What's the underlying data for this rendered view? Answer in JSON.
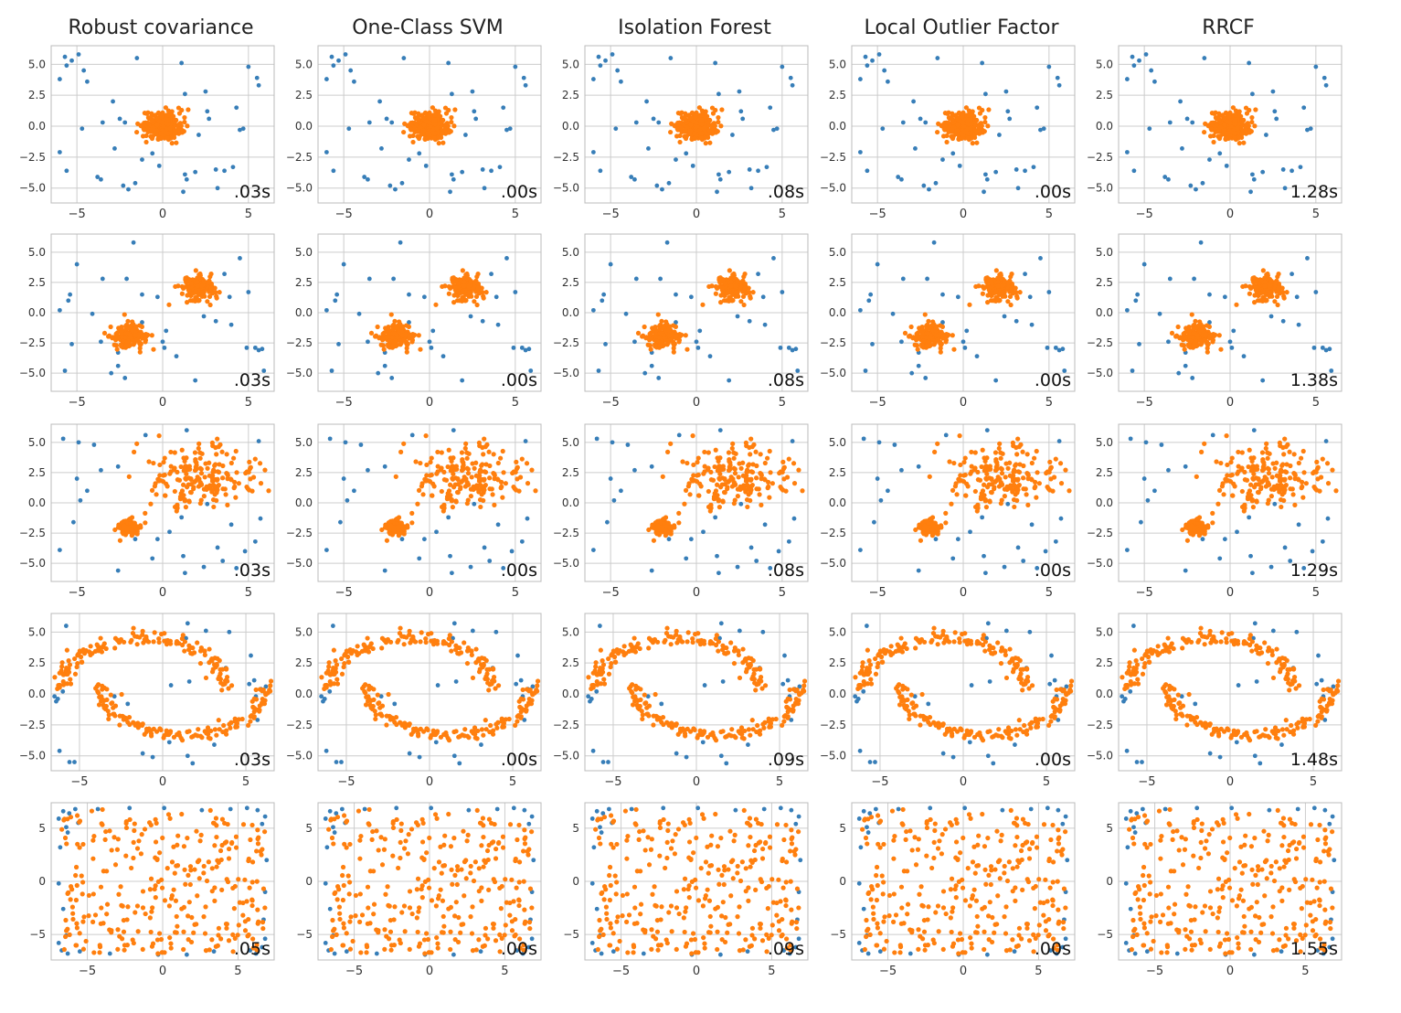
{
  "figure": {
    "titles": [
      "Robust covariance",
      "One-Class SVM",
      "Isolation Forest",
      "Local Outlier Factor",
      "RRCF"
    ]
  },
  "colors": {
    "inlier": "#ff7f0e",
    "outlier": "#377eb8",
    "grid": "#cccccc",
    "frame": "#bbbbbb"
  },
  "chart_data": [
    {
      "type": "scatter",
      "dataset": "single-blob",
      "xlim": [
        -6.5,
        6.5
      ],
      "ylim": [
        -6.2,
        6.5
      ],
      "xticks": [
        -5,
        0,
        5
      ],
      "xticklabels": [
        "−5",
        "0",
        "5"
      ],
      "yticks": [
        5.0,
        2.5,
        0.0,
        -2.5,
        -5.0
      ],
      "yticklabels": [
        "5.0",
        "2.5",
        "0.0",
        "−2.5",
        "−5.0"
      ],
      "times": [
        ".03s",
        ".00s",
        ".08s",
        ".00s",
        "1.28s"
      ],
      "clusters": [
        {
          "cx": 0,
          "cy": 0,
          "sx": 0.55,
          "sy": 0.55,
          "n": 300
        }
      ],
      "outliers": [
        [
          -5.7,
          5.6
        ],
        [
          -5.3,
          5.3
        ],
        [
          -4.9,
          5.8
        ],
        [
          -5.6,
          4.9
        ],
        [
          -4.6,
          4.5
        ],
        [
          -6,
          3.8
        ],
        [
          -4.4,
          3.6
        ],
        [
          -1.5,
          5.5
        ],
        [
          1.1,
          5.1
        ],
        [
          5,
          4.8
        ],
        [
          5.5,
          3.9
        ],
        [
          5.6,
          3.3
        ],
        [
          -2.9,
          2
        ],
        [
          1.3,
          2.6
        ],
        [
          2.5,
          2.8
        ],
        [
          2.6,
          1.2
        ],
        [
          2.7,
          0.6
        ],
        [
          4.3,
          1.5
        ],
        [
          -4.7,
          -0.2
        ],
        [
          -3.5,
          0.3
        ],
        [
          -2.5,
          0.6
        ],
        [
          -2.2,
          0.3
        ],
        [
          -2.8,
          -1.8
        ],
        [
          -1.2,
          -2.7
        ],
        [
          -0.6,
          -2.2
        ],
        [
          -0.2,
          -3.2
        ],
        [
          -3.8,
          -4.1
        ],
        [
          -3.6,
          -4.3
        ],
        [
          -2.3,
          -4.8
        ],
        [
          -2,
          -5.1
        ],
        [
          -1.6,
          -4.6
        ],
        [
          1.3,
          -3.9
        ],
        [
          1.4,
          -4.3
        ],
        [
          1.2,
          -5.3
        ],
        [
          3.1,
          -3.5
        ],
        [
          3.6,
          -3.6
        ],
        [
          4.1,
          -3.3
        ],
        [
          3.2,
          -5
        ],
        [
          -5.6,
          -3.6
        ],
        [
          -6,
          -2.1
        ],
        [
          4.7,
          -0.2
        ],
        [
          4.5,
          -0.3
        ],
        [
          2.1,
          -0.7
        ],
        [
          1.9,
          -3.7
        ]
      ]
    },
    {
      "type": "scatter",
      "dataset": "two-blobs",
      "xlim": [
        -6.5,
        6.5
      ],
      "ylim": [
        -6.5,
        6.5
      ],
      "xticks": [
        -5,
        0,
        5
      ],
      "xticklabels": [
        "−5",
        "0",
        "5"
      ],
      "yticks": [
        5.0,
        2.5,
        0.0,
        -2.5,
        -5.0
      ],
      "yticklabels": [
        "5.0",
        "2.5",
        "0.0",
        "−2.5",
        "−5.0"
      ],
      "times": [
        ".03s",
        ".00s",
        ".08s",
        ".00s",
        "1.38s"
      ],
      "clusters": [
        {
          "cx": 2,
          "cy": 2,
          "sx": 0.5,
          "sy": 0.5,
          "n": 150
        },
        {
          "cx": -2,
          "cy": -2,
          "sx": 0.5,
          "sy": 0.5,
          "n": 150
        }
      ],
      "outliers": [
        [
          -5,
          4
        ],
        [
          -1.7,
          5.8
        ],
        [
          -5.4,
          1.5
        ],
        [
          -5.5,
          1
        ],
        [
          -6,
          0.2
        ],
        [
          -5.3,
          -2.6
        ],
        [
          -5.7,
          -4.8
        ],
        [
          -3.6,
          -2.4
        ],
        [
          -2.6,
          -4.4
        ],
        [
          -3,
          -5
        ],
        [
          -2.2,
          -5.4
        ],
        [
          -2.6,
          -3.3
        ],
        [
          -1.2,
          -0.8
        ],
        [
          -1.2,
          1.5
        ],
        [
          -2.1,
          2.8
        ],
        [
          -0.3,
          1.3
        ],
        [
          0,
          -2.4
        ],
        [
          0.1,
          -2.9
        ],
        [
          0.8,
          -3.6
        ],
        [
          1.9,
          -5.6
        ],
        [
          3.1,
          -0.7
        ],
        [
          3.6,
          3.2
        ],
        [
          4.5,
          4.5
        ],
        [
          5,
          1.7
        ],
        [
          5.4,
          -2.9
        ],
        [
          5.6,
          -3.1
        ],
        [
          5.8,
          -3
        ],
        [
          5.9,
          -4.8
        ],
        [
          4.9,
          -2.9
        ],
        [
          3.9,
          1.3
        ],
        [
          4,
          -1
        ],
        [
          2.4,
          -0.3
        ],
        [
          0.2,
          -1.5
        ],
        [
          -4.1,
          -0.1
        ],
        [
          -3.5,
          2.8
        ]
      ]
    },
    {
      "type": "scatter",
      "dataset": "blob-and-spread",
      "xlim": [
        -6.5,
        6.5
      ],
      "ylim": [
        -6.5,
        6.5
      ],
      "xticks": [
        -5,
        0,
        5
      ],
      "xticklabels": [
        "−5",
        "0",
        "5"
      ],
      "yticks": [
        5.0,
        2.5,
        0.0,
        -2.5,
        -5.0
      ],
      "yticklabels": [
        "5.0",
        "2.5",
        "0.0",
        "−2.5",
        "−5.0"
      ],
      "times": [
        ".03s",
        ".00s",
        ".08s",
        ".00s",
        "1.29s"
      ],
      "clusters": [
        {
          "cx": -2,
          "cy": -2,
          "sx": 0.32,
          "sy": 0.32,
          "n": 100
        },
        {
          "cx": 2.2,
          "cy": 2.2,
          "sx": 1.5,
          "sy": 1.2,
          "n": 200
        }
      ],
      "outliers": [
        [
          -5.8,
          5.3
        ],
        [
          -4.9,
          5
        ],
        [
          -4,
          4.8
        ],
        [
          -1,
          5.6
        ],
        [
          1.4,
          6
        ],
        [
          -5,
          2
        ],
        [
          -3.6,
          2.7
        ],
        [
          -2.6,
          3
        ],
        [
          -4.4,
          1
        ],
        [
          -4.8,
          0.2
        ],
        [
          -5.2,
          -1.6
        ],
        [
          -6,
          -3.9
        ],
        [
          -2.6,
          -5.6
        ],
        [
          -1.6,
          -3
        ],
        [
          -0.3,
          -3
        ],
        [
          -0.6,
          -4.6
        ],
        [
          1.2,
          -4.4
        ],
        [
          1.3,
          -5.8
        ],
        [
          2.4,
          -5.3
        ],
        [
          3.2,
          -3.7
        ],
        [
          3.5,
          -4.8
        ],
        [
          4.3,
          -5.4
        ],
        [
          4.8,
          -4
        ],
        [
          5.4,
          -3.2
        ],
        [
          5.7,
          -1.3
        ],
        [
          4,
          -1.8
        ],
        [
          2.6,
          -0.1
        ],
        [
          1.1,
          -1.2
        ],
        [
          0.4,
          -2.4
        ],
        [
          5.6,
          5.1
        ]
      ]
    },
    {
      "type": "scatter",
      "dataset": "two-moons",
      "xlim": [
        -6.7,
        6.7
      ],
      "ylim": [
        -6.2,
        6.5
      ],
      "xticks": [
        -5,
        0,
        5
      ],
      "xticklabels": [
        "−5",
        "0",
        "5"
      ],
      "yticks": [
        5.0,
        2.5,
        0.0,
        -2.5,
        -5.0
      ],
      "yticklabels": [
        "5.0",
        "2.5",
        "0.0",
        "−2.5",
        "−5.0"
      ],
      "times": [
        ".03s",
        ".00s",
        ".09s",
        ".00s",
        "1.48s"
      ],
      "moons": {
        "n": 300,
        "noise": 0.25
      },
      "outliers": [
        [
          -5.8,
          5.5
        ],
        [
          -6.5,
          -0.2
        ],
        [
          -6.3,
          -0.4
        ],
        [
          -6,
          0.2
        ],
        [
          -6.4,
          -0.6
        ],
        [
          -6.2,
          -4.6
        ],
        [
          -5.6,
          -5.5
        ],
        [
          -5.3,
          -5.5
        ],
        [
          0.2,
          4.3
        ],
        [
          2.6,
          5.1
        ],
        [
          4,
          5
        ],
        [
          3.8,
          2.1
        ],
        [
          5.3,
          3.1
        ],
        [
          3.8,
          1.1
        ],
        [
          5.5,
          1.1
        ],
        [
          5.9,
          0.4
        ],
        [
          5.6,
          -0.2
        ],
        [
          5.2,
          0.8
        ],
        [
          6.2,
          0.6
        ],
        [
          1.5,
          5.7
        ],
        [
          1.4,
          4.5
        ],
        [
          -2.1,
          -0.8
        ],
        [
          -1.2,
          -4.8
        ],
        [
          -0.6,
          -5.1
        ],
        [
          1.5,
          -5
        ],
        [
          1.8,
          -5.6
        ],
        [
          0.4,
          -3.9
        ],
        [
          3.1,
          -4.1
        ],
        [
          1.6,
          1
        ],
        [
          0.5,
          0.7
        ],
        [
          -2.9,
          -0.2
        ],
        [
          5.7,
          -2.1
        ]
      ]
    },
    {
      "type": "scatter",
      "dataset": "uniform",
      "xlim": [
        -7.4,
        7.4
      ],
      "ylim": [
        -7.4,
        7.4
      ],
      "xticks": [
        -5,
        0,
        5
      ],
      "xticklabels": [
        "−5",
        "0",
        "5"
      ],
      "yticks": [
        5,
        0,
        -5
      ],
      "yticklabels": [
        "5",
        "0",
        "−5"
      ],
      "times": [
        ".05s",
        ".00s",
        ".09s",
        ".00s",
        "1.55s"
      ],
      "uniform": {
        "n": 300,
        "range": 6.8
      },
      "outliers": [
        [
          -6.6,
          6.6
        ],
        [
          -6.2,
          6.4
        ],
        [
          -5.8,
          6.8
        ],
        [
          -6.9,
          5.9
        ],
        [
          -6.4,
          5.1
        ],
        [
          -6.3,
          4.6
        ],
        [
          -5.6,
          5.5
        ],
        [
          6.3,
          6.7
        ],
        [
          6.8,
          6.1
        ],
        [
          6.6,
          5.4
        ],
        [
          5.6,
          6.9
        ],
        [
          -6.7,
          -6.5
        ],
        [
          -6.3,
          -6.8
        ],
        [
          -5.5,
          -6.6
        ],
        [
          -6.9,
          -5.8
        ],
        [
          -6.4,
          -5.1
        ],
        [
          6.6,
          -6.2
        ],
        [
          6.2,
          -6.8
        ],
        [
          6.8,
          -5.4
        ],
        [
          5.8,
          -6.5
        ],
        [
          6.7,
          -3.6
        ],
        [
          -6.6,
          -2.6
        ],
        [
          -2.2,
          6.9
        ],
        [
          2.6,
          6.7
        ],
        [
          -3.5,
          -6.8
        ],
        [
          1.6,
          -6.9
        ],
        [
          6.9,
          2
        ],
        [
          -6.9,
          -0.2
        ],
        [
          0.1,
          6.9
        ],
        [
          -0.3,
          -6.9
        ],
        [
          3.4,
          -6.6
        ],
        [
          -4.3,
          6.8
        ],
        [
          6.8,
          -1
        ],
        [
          4.5,
          6.8
        ],
        [
          -6.8,
          3.2
        ]
      ]
    }
  ]
}
